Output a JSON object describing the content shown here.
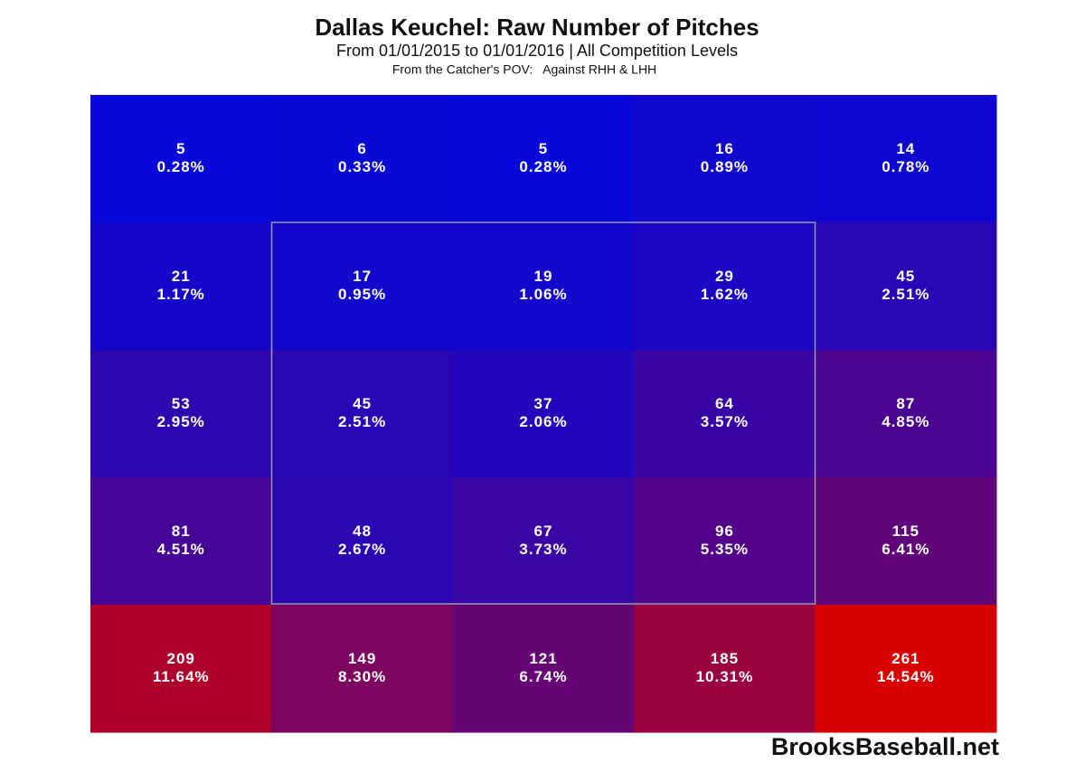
{
  "chart_data": {
    "type": "heatmap",
    "title": "Dallas Keuchel: Raw Number of Pitches",
    "subtitle": "From 01/01/2015 to 01/01/2016 | All Competition Levels",
    "caption": "From the Catcher's POV:   Against RHH & LHH",
    "source": "BrooksBaseball.net",
    "color_low": "#0808d8",
    "color_high": "#d80000",
    "values": [
      [
        5,
        6,
        5,
        16,
        14
      ],
      [
        21,
        17,
        19,
        29,
        45
      ],
      [
        53,
        45,
        37,
        64,
        87
      ],
      [
        81,
        48,
        67,
        96,
        115
      ],
      [
        209,
        149,
        121,
        185,
        261
      ]
    ],
    "percentage_labels": [
      [
        "0.28%",
        "0.33%",
        "0.28%",
        "0.89%",
        "0.78%"
      ],
      [
        "1.17%",
        "0.95%",
        "1.06%",
        "1.62%",
        "2.51%"
      ],
      [
        "2.95%",
        "2.51%",
        "2.06%",
        "3.57%",
        "4.85%"
      ],
      [
        "4.51%",
        "2.67%",
        "3.73%",
        "5.35%",
        "6.41%"
      ],
      [
        "11.64%",
        "8.30%",
        "6.74%",
        "10.31%",
        "14.54%"
      ]
    ]
  }
}
